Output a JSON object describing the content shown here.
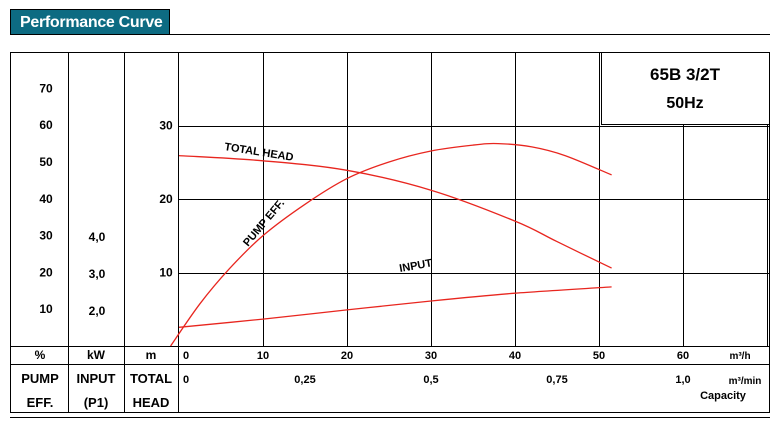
{
  "header": {
    "tab_label": "Performance Curve"
  },
  "model": {
    "name": "65B 3/2T",
    "frequency": "50Hz"
  },
  "colors": {
    "tab_bg": "#0d6b82",
    "curve": "#e8261f",
    "grid": "#000000"
  },
  "chart_data": {
    "type": "line",
    "title": "65B 3/2T",
    "subtitle": "50Hz",
    "x": {
      "unit_m3h": "m³/h",
      "unit_m3min": "m³/min",
      "capacity_label": "Capacity",
      "ticks_m3h": [
        0,
        10,
        20,
        30,
        40,
        50,
        60
      ],
      "ticks_m3min_labels": [
        "0",
        "0,25",
        "0,5",
        "0,75",
        "1,0"
      ],
      "ticks_m3min_values": [
        0,
        0.25,
        0.5,
        0.75,
        1.0
      ],
      "xlim": [
        0,
        70
      ]
    },
    "axes": {
      "pump_eff": {
        "unit": "%",
        "label_line1": "PUMP",
        "label_line2": "EFF.",
        "ticks": [
          "70",
          "60",
          "50",
          "40",
          "30",
          "20",
          "10"
        ],
        "tick_values": [
          70,
          60,
          50,
          40,
          30,
          20,
          10
        ],
        "ylim": [
          0,
          80
        ]
      },
      "input": {
        "unit": "kW",
        "label_line1": "INPUT",
        "label_line2": "(P1)",
        "ticks": [
          "4,0",
          "3,0",
          "2,0"
        ],
        "tick_values": [
          4.0,
          3.0,
          2.0
        ]
      },
      "total_head": {
        "unit": "m",
        "label_line1": "TOTAL",
        "label_line2": "HEAD",
        "ticks": [
          "30",
          "20",
          "10"
        ],
        "tick_values": [
          30,
          20,
          10
        ],
        "ylim": [
          0,
          40
        ]
      }
    },
    "series": [
      {
        "name": "TOTAL HEAD",
        "axis": "total_head",
        "points": [
          [
            0,
            25.9
          ],
          [
            10,
            25.2
          ],
          [
            20,
            23.9
          ],
          [
            30,
            21.2
          ],
          [
            40,
            17.0
          ],
          [
            45,
            14.2
          ],
          [
            51.5,
            10.6
          ]
        ]
      },
      {
        "name": "PUMP EFF.",
        "axis": "pump_eff",
        "points": [
          [
            -1,
            0
          ],
          [
            2.5,
            11.5
          ],
          [
            6,
            21
          ],
          [
            10,
            30
          ],
          [
            15,
            38.5
          ],
          [
            20,
            45.5
          ],
          [
            25,
            50
          ],
          [
            30,
            53
          ],
          [
            35,
            54.6
          ],
          [
            38,
            55
          ],
          [
            42,
            54.1
          ],
          [
            46,
            51.7
          ],
          [
            51.5,
            46.5
          ]
        ]
      },
      {
        "name": "INPUT",
        "axis": "input",
        "points": [
          [
            0,
            1.56
          ],
          [
            10,
            1.78
          ],
          [
            20,
            2.03
          ],
          [
            30,
            2.27
          ],
          [
            40,
            2.48
          ],
          [
            51.5,
            2.65
          ]
        ]
      }
    ]
  }
}
